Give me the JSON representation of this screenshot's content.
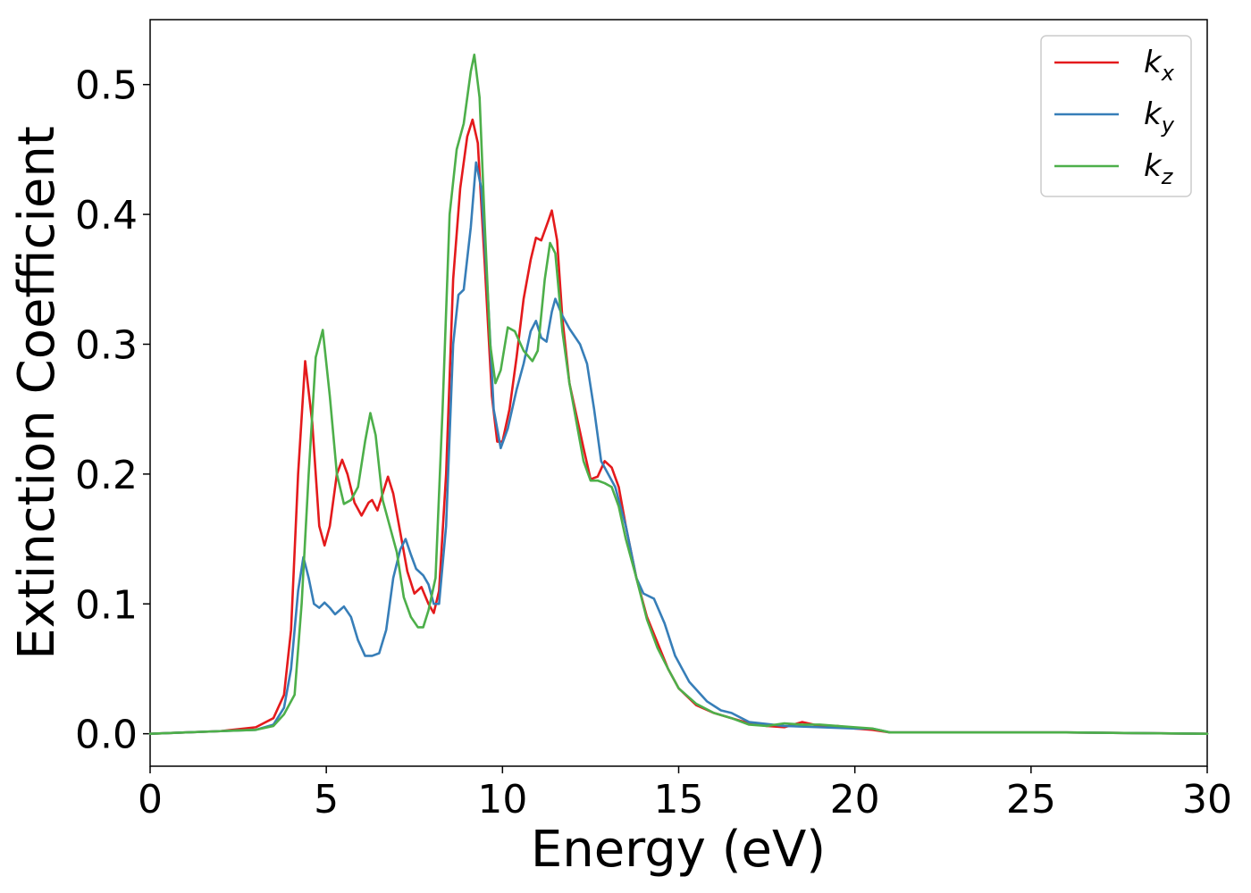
{
  "chart_data": {
    "type": "line",
    "xlabel": "Energy (eV)",
    "ylabel": "Extinction Coefficient",
    "xlim": [
      0,
      30
    ],
    "ylim": [
      -0.025,
      0.55
    ],
    "xticks": [
      0,
      5,
      10,
      15,
      20,
      25,
      30
    ],
    "xtick_labels": [
      "0",
      "5",
      "10",
      "15",
      "20",
      "25",
      "30"
    ],
    "yticks": [
      0.0,
      0.1,
      0.2,
      0.3,
      0.4,
      0.5
    ],
    "ytick_labels": [
      "0.0",
      "0.1",
      "0.2",
      "0.3",
      "0.4",
      "0.5"
    ],
    "grid": false,
    "legend_position": "top-right",
    "series": [
      {
        "name": "kx",
        "label_main": "k",
        "label_sub": "x",
        "color": "#e41a1c",
        "points": [
          [
            0,
            0
          ],
          [
            1,
            0.001
          ],
          [
            2,
            0.002
          ],
          [
            3,
            0.005
          ],
          [
            3.5,
            0.012
          ],
          [
            3.8,
            0.03
          ],
          [
            4.0,
            0.08
          ],
          [
            4.2,
            0.2
          ],
          [
            4.4,
            0.287
          ],
          [
            4.6,
            0.24
          ],
          [
            4.8,
            0.16
          ],
          [
            4.95,
            0.145
          ],
          [
            5.1,
            0.16
          ],
          [
            5.3,
            0.2
          ],
          [
            5.45,
            0.211
          ],
          [
            5.6,
            0.2
          ],
          [
            5.8,
            0.178
          ],
          [
            6.0,
            0.168
          ],
          [
            6.2,
            0.178
          ],
          [
            6.3,
            0.18
          ],
          [
            6.45,
            0.172
          ],
          [
            6.6,
            0.185
          ],
          [
            6.75,
            0.198
          ],
          [
            6.9,
            0.185
          ],
          [
            7.1,
            0.155
          ],
          [
            7.3,
            0.125
          ],
          [
            7.5,
            0.108
          ],
          [
            7.7,
            0.113
          ],
          [
            7.9,
            0.1
          ],
          [
            8.05,
            0.093
          ],
          [
            8.2,
            0.11
          ],
          [
            8.4,
            0.2
          ],
          [
            8.6,
            0.35
          ],
          [
            8.8,
            0.42
          ],
          [
            9.0,
            0.46
          ],
          [
            9.15,
            0.473
          ],
          [
            9.3,
            0.455
          ],
          [
            9.5,
            0.36
          ],
          [
            9.7,
            0.26
          ],
          [
            9.85,
            0.225
          ],
          [
            10.0,
            0.225
          ],
          [
            10.2,
            0.25
          ],
          [
            10.4,
            0.29
          ],
          [
            10.6,
            0.335
          ],
          [
            10.8,
            0.365
          ],
          [
            10.95,
            0.382
          ],
          [
            11.1,
            0.38
          ],
          [
            11.3,
            0.395
          ],
          [
            11.4,
            0.403
          ],
          [
            11.55,
            0.38
          ],
          [
            11.7,
            0.32
          ],
          [
            11.9,
            0.27
          ],
          [
            12.1,
            0.245
          ],
          [
            12.3,
            0.22
          ],
          [
            12.5,
            0.196
          ],
          [
            12.7,
            0.198
          ],
          [
            12.9,
            0.21
          ],
          [
            13.1,
            0.205
          ],
          [
            13.3,
            0.19
          ],
          [
            13.5,
            0.16
          ],
          [
            13.8,
            0.12
          ],
          [
            14.1,
            0.09
          ],
          [
            14.4,
            0.07
          ],
          [
            14.7,
            0.05
          ],
          [
            15.0,
            0.035
          ],
          [
            15.5,
            0.022
          ],
          [
            16,
            0.016
          ],
          [
            16.5,
            0.012
          ],
          [
            17,
            0.008
          ],
          [
            17.5,
            0.006
          ],
          [
            18,
            0.005
          ],
          [
            18.5,
            0.009
          ],
          [
            19,
            0.006
          ],
          [
            19.5,
            0.006
          ],
          [
            20,
            0.004
          ],
          [
            20.5,
            0.003
          ],
          [
            21,
            0.001
          ],
          [
            22,
            0.001
          ],
          [
            24,
            0.001
          ],
          [
            26,
            0.001
          ],
          [
            28,
            0.0005
          ],
          [
            30,
            0
          ]
        ]
      },
      {
        "name": "ky",
        "label_main": "k",
        "label_sub": "y",
        "color": "#377eb8",
        "points": [
          [
            0,
            0
          ],
          [
            1,
            0.001
          ],
          [
            2,
            0.002
          ],
          [
            3,
            0.003
          ],
          [
            3.5,
            0.007
          ],
          [
            3.8,
            0.02
          ],
          [
            4.0,
            0.05
          ],
          [
            4.2,
            0.11
          ],
          [
            4.35,
            0.136
          ],
          [
            4.5,
            0.12
          ],
          [
            4.65,
            0.1
          ],
          [
            4.8,
            0.097
          ],
          [
            4.95,
            0.101
          ],
          [
            5.1,
            0.097
          ],
          [
            5.25,
            0.092
          ],
          [
            5.5,
            0.098
          ],
          [
            5.7,
            0.09
          ],
          [
            5.9,
            0.072
          ],
          [
            6.1,
            0.06
          ],
          [
            6.3,
            0.06
          ],
          [
            6.5,
            0.062
          ],
          [
            6.7,
            0.08
          ],
          [
            6.9,
            0.12
          ],
          [
            7.1,
            0.142
          ],
          [
            7.25,
            0.15
          ],
          [
            7.4,
            0.138
          ],
          [
            7.55,
            0.127
          ],
          [
            7.75,
            0.122
          ],
          [
            7.9,
            0.115
          ],
          [
            8.05,
            0.1
          ],
          [
            8.2,
            0.1
          ],
          [
            8.4,
            0.16
          ],
          [
            8.6,
            0.3
          ],
          [
            8.75,
            0.338
          ],
          [
            8.9,
            0.342
          ],
          [
            9.1,
            0.39
          ],
          [
            9.25,
            0.44
          ],
          [
            9.4,
            0.42
          ],
          [
            9.6,
            0.33
          ],
          [
            9.75,
            0.25
          ],
          [
            9.95,
            0.22
          ],
          [
            10.15,
            0.235
          ],
          [
            10.4,
            0.265
          ],
          [
            10.6,
            0.285
          ],
          [
            10.8,
            0.31
          ],
          [
            10.95,
            0.318
          ],
          [
            11.1,
            0.305
          ],
          [
            11.25,
            0.302
          ],
          [
            11.4,
            0.325
          ],
          [
            11.5,
            0.335
          ],
          [
            11.7,
            0.322
          ],
          [
            11.9,
            0.312
          ],
          [
            12.2,
            0.3
          ],
          [
            12.4,
            0.285
          ],
          [
            12.6,
            0.25
          ],
          [
            12.8,
            0.21
          ],
          [
            13.0,
            0.2
          ],
          [
            13.2,
            0.19
          ],
          [
            13.5,
            0.16
          ],
          [
            13.8,
            0.12
          ],
          [
            14.0,
            0.108
          ],
          [
            14.3,
            0.104
          ],
          [
            14.6,
            0.085
          ],
          [
            14.9,
            0.06
          ],
          [
            15.3,
            0.04
          ],
          [
            15.8,
            0.025
          ],
          [
            16.2,
            0.018
          ],
          [
            16.5,
            0.016
          ],
          [
            17,
            0.009
          ],
          [
            18,
            0.006
          ],
          [
            19,
            0.005
          ],
          [
            20,
            0.004
          ],
          [
            20.5,
            0.004
          ],
          [
            21,
            0.001
          ],
          [
            22,
            0.001
          ],
          [
            24,
            0.001
          ],
          [
            26,
            0.001
          ],
          [
            28,
            0.0005
          ],
          [
            30,
            0
          ]
        ]
      },
      {
        "name": "kz",
        "label_main": "k",
        "label_sub": "z",
        "color": "#4daf4a",
        "points": [
          [
            0,
            0
          ],
          [
            1,
            0.001
          ],
          [
            2,
            0.002
          ],
          [
            3,
            0.003
          ],
          [
            3.5,
            0.006
          ],
          [
            3.8,
            0.015
          ],
          [
            4.1,
            0.03
          ],
          [
            4.3,
            0.1
          ],
          [
            4.5,
            0.2
          ],
          [
            4.7,
            0.29
          ],
          [
            4.9,
            0.311
          ],
          [
            5.1,
            0.26
          ],
          [
            5.3,
            0.2
          ],
          [
            5.5,
            0.177
          ],
          [
            5.7,
            0.18
          ],
          [
            5.9,
            0.19
          ],
          [
            6.1,
            0.225
          ],
          [
            6.25,
            0.247
          ],
          [
            6.4,
            0.23
          ],
          [
            6.6,
            0.18
          ],
          [
            6.8,
            0.16
          ],
          [
            7.0,
            0.14
          ],
          [
            7.2,
            0.105
          ],
          [
            7.4,
            0.09
          ],
          [
            7.6,
            0.082
          ],
          [
            7.75,
            0.082
          ],
          [
            7.9,
            0.095
          ],
          [
            8.1,
            0.12
          ],
          [
            8.3,
            0.25
          ],
          [
            8.5,
            0.4
          ],
          [
            8.7,
            0.45
          ],
          [
            8.9,
            0.47
          ],
          [
            9.1,
            0.51
          ],
          [
            9.2,
            0.523
          ],
          [
            9.35,
            0.49
          ],
          [
            9.5,
            0.39
          ],
          [
            9.65,
            0.3
          ],
          [
            9.8,
            0.27
          ],
          [
            9.95,
            0.28
          ],
          [
            10.15,
            0.313
          ],
          [
            10.35,
            0.31
          ],
          [
            10.6,
            0.295
          ],
          [
            10.85,
            0.287
          ],
          [
            11.0,
            0.295
          ],
          [
            11.2,
            0.35
          ],
          [
            11.35,
            0.378
          ],
          [
            11.5,
            0.37
          ],
          [
            11.7,
            0.31
          ],
          [
            11.9,
            0.27
          ],
          [
            12.1,
            0.24
          ],
          [
            12.3,
            0.21
          ],
          [
            12.5,
            0.195
          ],
          [
            12.7,
            0.195
          ],
          [
            12.9,
            0.193
          ],
          [
            13.1,
            0.19
          ],
          [
            13.3,
            0.175
          ],
          [
            13.5,
            0.15
          ],
          [
            13.8,
            0.12
          ],
          [
            14.1,
            0.088
          ],
          [
            14.4,
            0.066
          ],
          [
            14.7,
            0.05
          ],
          [
            15.0,
            0.035
          ],
          [
            15.5,
            0.023
          ],
          [
            16,
            0.016
          ],
          [
            16.5,
            0.012
          ],
          [
            17,
            0.007
          ],
          [
            17.5,
            0.006
          ],
          [
            18,
            0.008
          ],
          [
            18.5,
            0.007
          ],
          [
            19,
            0.007
          ],
          [
            19.5,
            0.006
          ],
          [
            20,
            0.005
          ],
          [
            20.5,
            0.004
          ],
          [
            21,
            0.001
          ],
          [
            22,
            0.001
          ],
          [
            24,
            0.001
          ],
          [
            26,
            0.001
          ],
          [
            28,
            0.0005
          ],
          [
            30,
            0
          ]
        ]
      }
    ]
  }
}
